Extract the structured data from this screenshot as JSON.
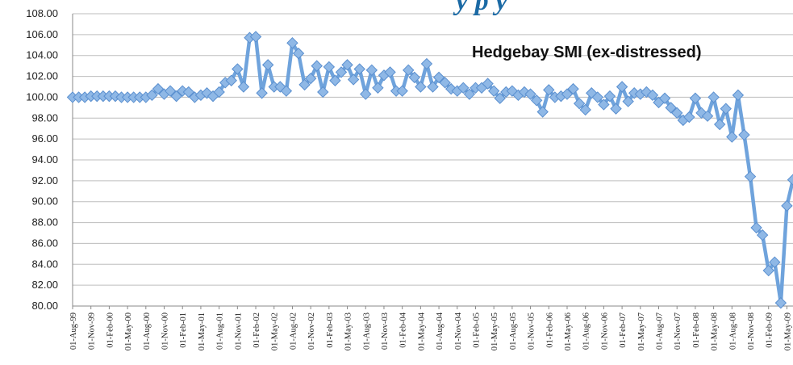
{
  "header_fragment": "y   p  y",
  "chart_data": {
    "type": "line",
    "title": "Hedgebay SMI (ex-distressed)",
    "xlabel": "",
    "ylabel": "",
    "ylim": [
      80,
      108
    ],
    "yticks": [
      "80.00",
      "82.00",
      "84.00",
      "86.00",
      "88.00",
      "90.00",
      "92.00",
      "94.00",
      "96.00",
      "98.00",
      "100.00",
      "102.00",
      "104.00",
      "106.00",
      "108.00"
    ],
    "x_tick_labels": [
      "01-Aug-99",
      "01-Nov-99",
      "01-Feb-00",
      "01-May-00",
      "01-Aug-00",
      "01-Nov-00",
      "01-Feb-01",
      "01-May-01",
      "01-Aug-01",
      "01-Nov-01",
      "01-Feb-02",
      "01-May-02",
      "01-Aug-02",
      "01-Nov-02",
      "01-Feb-03",
      "01-May-03",
      "01-Aug-03",
      "01-Nov-03",
      "01-Feb-04",
      "01-May-04",
      "01-Aug-04",
      "01-Nov-04",
      "01-Feb-05",
      "01-May-05",
      "01-Aug-05",
      "01-Nov-05",
      "01-Feb-06",
      "01-May-06",
      "01-Aug-06",
      "01-Nov-06",
      "01-Feb-07",
      "01-May-07",
      "01-Aug-07",
      "01-Nov-07",
      "01-Feb-08",
      "01-May-08",
      "01-Aug-08",
      "01-Nov-08",
      "01-Feb-09",
      "01-May-09"
    ],
    "grid": true,
    "legend": "none",
    "colors": {
      "line": "#6fa3dc",
      "marker_fill": "#8fb8e6",
      "marker_stroke": "#5a8fcf",
      "grid": "#bdbdbd"
    },
    "series": [
      {
        "values": [
          100.0,
          100.0,
          100.0,
          100.1,
          100.1,
          100.1,
          100.1,
          100.1,
          100.0,
          100.0,
          100.0,
          100.0,
          100.0,
          100.2,
          100.8,
          100.3,
          100.6,
          100.1,
          100.6,
          100.5,
          100.0,
          100.2,
          100.4,
          100.1,
          100.5,
          101.4,
          101.6,
          102.7,
          101.0,
          105.7,
          105.8,
          100.4,
          103.1,
          101.0,
          101.0,
          100.6,
          105.2,
          104.2,
          101.2,
          101.8,
          103.0,
          100.5,
          102.9,
          101.6,
          102.4,
          103.1,
          101.7,
          102.7,
          100.3,
          102.6,
          100.9,
          102.1,
          102.4,
          100.6,
          100.6,
          102.6,
          101.9,
          101.0,
          103.2,
          101.0,
          101.9,
          101.4,
          100.8,
          100.6,
          100.9,
          100.3,
          100.9,
          100.9,
          101.3,
          100.6,
          99.9,
          100.5,
          100.6,
          100.2,
          100.5,
          100.3,
          99.7,
          98.6,
          100.7,
          100.0,
          100.1,
          100.3,
          100.8,
          99.4,
          98.8,
          100.4,
          100.0,
          99.3,
          100.1,
          98.9,
          101.0,
          99.6,
          100.4,
          100.3,
          100.5,
          100.2,
          99.5,
          99.9,
          99.0,
          98.5,
          97.8,
          98.1,
          99.9,
          98.5,
          98.2,
          100.0,
          97.4,
          98.9,
          96.2,
          100.2,
          96.4,
          92.4,
          87.5,
          86.8,
          83.4,
          84.2,
          80.3,
          89.6,
          92.1
        ]
      }
    ]
  }
}
